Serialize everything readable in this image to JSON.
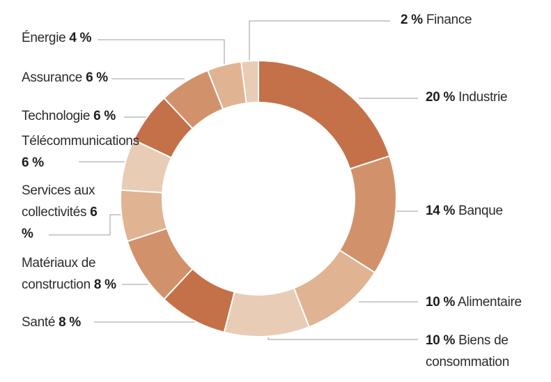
{
  "chart_data": {
    "type": "pie",
    "style": "donut",
    "unit": "%",
    "colors": [
      "#c47048",
      "#d1926b",
      "#e0b392",
      "#e8ccb6"
    ],
    "slices": [
      {
        "name": "Industrie",
        "value": 20,
        "label_text": "Industrie",
        "value_text": "20 %",
        "color": "#c47048"
      },
      {
        "name": "Banque",
        "value": 14,
        "label_text": "Banque",
        "value_text": "14 %",
        "color": "#d1926b"
      },
      {
        "name": "Alimentaire",
        "value": 10,
        "label_text": "Alimentaire",
        "value_text": "10 %",
        "color": "#e0b392"
      },
      {
        "name": "Biens de consommation",
        "value": 10,
        "label_text": "Biens de consommation",
        "value_text": "10 %",
        "color": "#e8ccb6"
      },
      {
        "name": "Santé",
        "value": 8,
        "label_text": "Santé",
        "value_text": "8 %",
        "color": "#c47048"
      },
      {
        "name": "Matériaux de construction",
        "value": 8,
        "label_text": "Matériaux de construction",
        "value_text": "8 %",
        "color": "#d1926b"
      },
      {
        "name": "Services aux collectivités",
        "value": 6,
        "label_text": "Services aux collectivités",
        "value_text": "6 %",
        "color": "#e0b392"
      },
      {
        "name": "Télécommunications",
        "value": 6,
        "label_text": "Télécommunications",
        "value_text": "6 %",
        "color": "#e8ccb6"
      },
      {
        "name": "Technologie",
        "value": 6,
        "label_text": "Technologie",
        "value_text": "6 %",
        "color": "#c47048"
      },
      {
        "name": "Assurance",
        "value": 6,
        "label_text": "Assurance",
        "value_text": "6 %",
        "color": "#d1926b"
      },
      {
        "name": "Énergie",
        "value": 4,
        "label_text": "Énergie",
        "value_text": "4 %",
        "color": "#e0b392"
      },
      {
        "name": "Finance",
        "value": 2,
        "label_text": "Finance",
        "value_text": "2 %",
        "color": "#e8ccb6"
      }
    ]
  }
}
